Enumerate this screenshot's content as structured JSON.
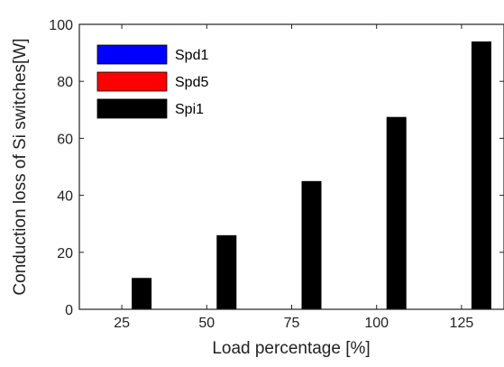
{
  "chart_data": {
    "type": "bar",
    "title": "",
    "xlabel": "Load percentage [%]",
    "ylabel": "Conduction loss of Si switches[W]",
    "categories": [
      "25",
      "50",
      "75",
      "100",
      "125"
    ],
    "ylim": [
      0,
      100
    ],
    "yticks": [
      0,
      20,
      40,
      60,
      80,
      100
    ],
    "grid": false,
    "legend_position": "top-left",
    "series": [
      {
        "name": "Spd1",
        "color": "#0000ff",
        "values": [
          0,
          0,
          0,
          0,
          0
        ]
      },
      {
        "name": "Spd5",
        "color": "#ff0000",
        "values": [
          0,
          0,
          0,
          0,
          0
        ]
      },
      {
        "name": "Spi1",
        "color": "#000000",
        "values": [
          11,
          26,
          45,
          67.5,
          94
        ]
      }
    ]
  }
}
